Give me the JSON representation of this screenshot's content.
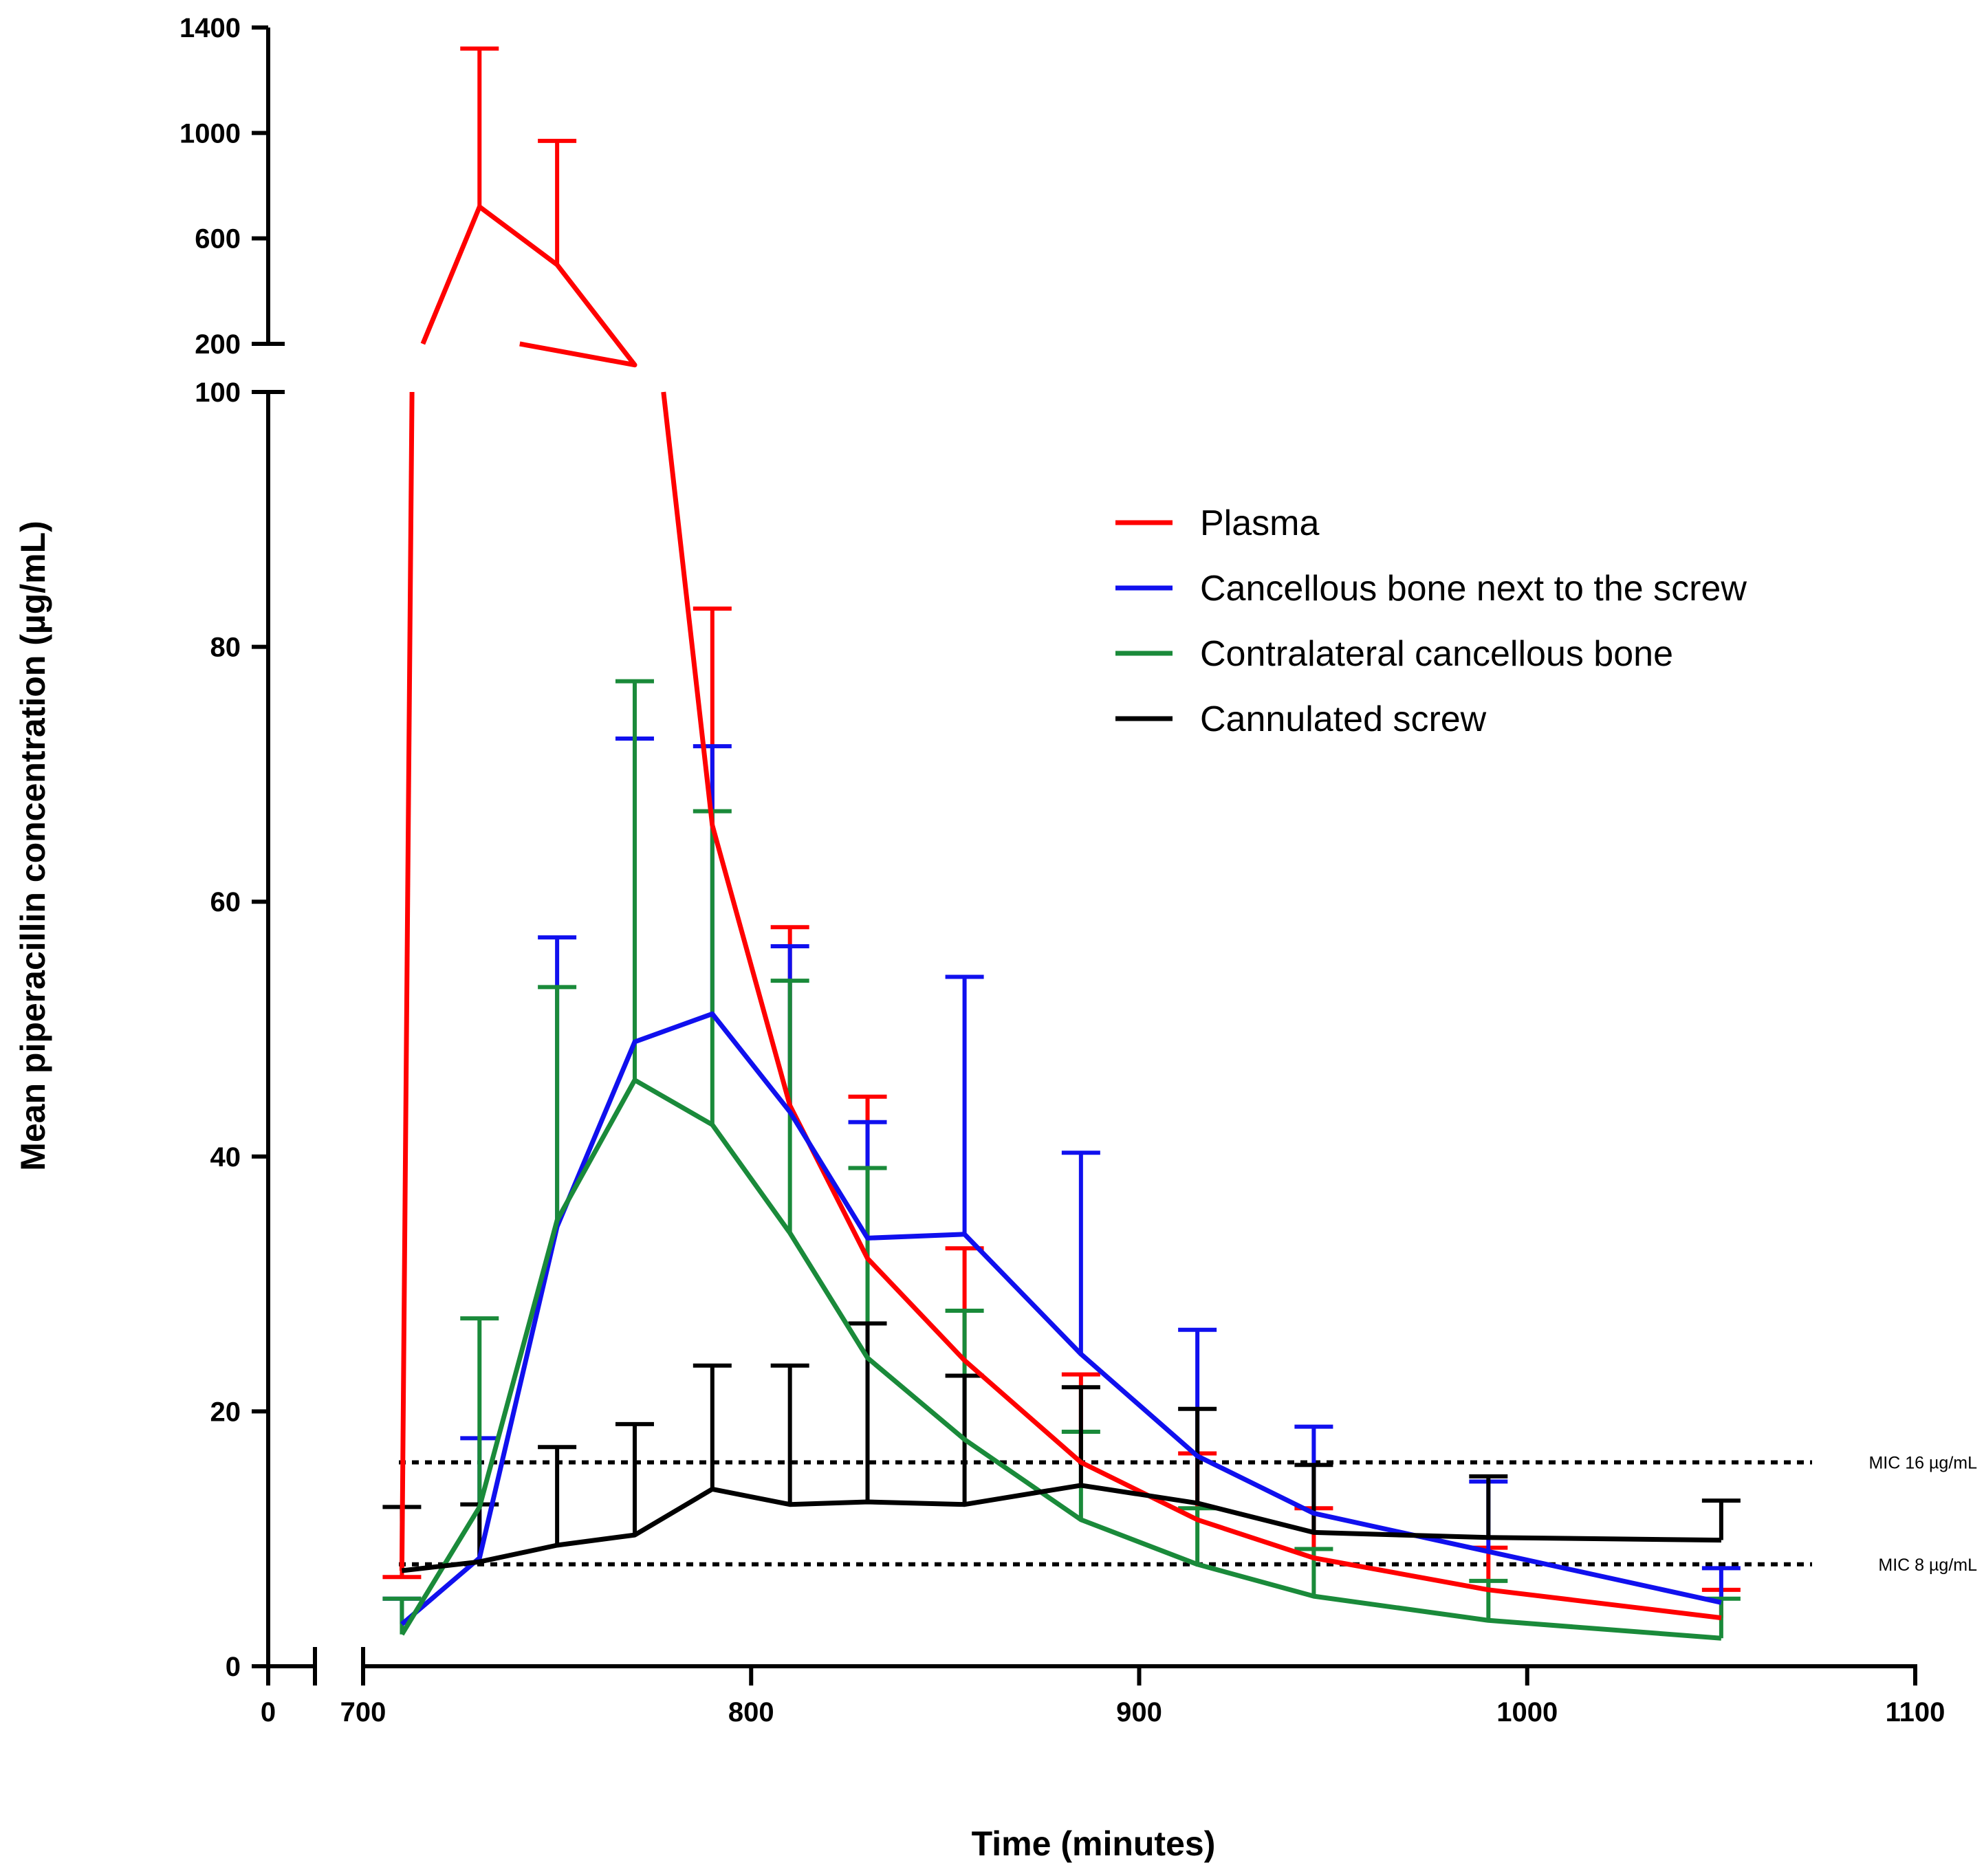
{
  "chart_data": {
    "type": "line",
    "title": "",
    "xlabel": "Time (minutes)",
    "ylabel": "Mean piperacillin concentration (µg/mL)",
    "x_axis": {
      "break_between": [
        0,
        700
      ],
      "segment_1": {
        "range": [
          0,
          60
        ],
        "ticks": [
          0
        ]
      },
      "segment_2": {
        "range": [
          700,
          1100
        ],
        "ticks": [
          700,
          800,
          900,
          1000,
          1100
        ]
      }
    },
    "y_axis": {
      "break_between": [
        100,
        200
      ],
      "lower": {
        "range": [
          0,
          100
        ],
        "ticks": [
          0,
          20,
          40,
          60,
          80,
          100
        ]
      },
      "upper": {
        "range": [
          200,
          1400
        ],
        "ticks": [
          200,
          600,
          1000,
          1400
        ]
      }
    },
    "legend_position": "upper-right",
    "error_bars": "upper standard deviation",
    "series": [
      {
        "name": "Plasma",
        "color": "#ff0000",
        "x": [
          710,
          730,
          750,
          770,
          790,
          810,
          830,
          855,
          885,
          915,
          945,
          990,
          1050
        ],
        "values": [
          7.5,
          720,
          500,
          120,
          66,
          44,
          32,
          24,
          16,
          11.5,
          8.5,
          6,
          3.8
        ],
        "error_upper": [
          7,
          1320,
          970,
          null,
          83,
          58,
          44.7,
          32.8,
          22.9,
          16.7,
          12.4,
          9.3,
          6
        ]
      },
      {
        "name": "Cancellous bone next to the screw",
        "color": "#1010ee",
        "x": [
          710,
          730,
          750,
          770,
          790,
          810,
          830,
          855,
          885,
          915,
          945,
          990,
          1050
        ],
        "values": [
          3.3,
          8.5,
          34.5,
          49,
          51.2,
          43.5,
          33.6,
          33.9,
          24.5,
          16.5,
          12,
          9,
          5
        ],
        "error_upper": [
          5.3,
          17.9,
          57.2,
          72.8,
          72.2,
          56.5,
          42.7,
          54.1,
          40.3,
          26.4,
          18.8,
          14.5,
          7.7
        ]
      },
      {
        "name": "Contralateral cancellous bone",
        "color": "#1a8a3a",
        "x": [
          710,
          730,
          750,
          770,
          790,
          810,
          830,
          855,
          885,
          915,
          945,
          990,
          1050
        ],
        "values": [
          2.5,
          12.5,
          35,
          46,
          42.5,
          34,
          24.2,
          17.8,
          11.5,
          8,
          5.5,
          3.6,
          2.2
        ],
        "error_upper": [
          5.3,
          27.3,
          53.3,
          77.3,
          67.1,
          53.8,
          39.1,
          27.9,
          18.4,
          12.4,
          9.2,
          6.7,
          5.3
        ]
      },
      {
        "name": "Cannulated screw",
        "color": "#000000",
        "x": [
          710,
          730,
          750,
          770,
          790,
          810,
          830,
          855,
          885,
          915,
          945,
          990,
          1050
        ],
        "values": [
          7.5,
          8.2,
          9.5,
          10.3,
          13.9,
          12.7,
          12.9,
          12.7,
          14.2,
          12.8,
          10.5,
          10.1,
          9.9
        ],
        "error_upper": [
          12.5,
          12.7,
          17.2,
          19,
          23.6,
          23.6,
          26.9,
          22.8,
          21.9,
          20.2,
          15.8,
          14.9,
          13
        ]
      }
    ],
    "reference_lines": [
      {
        "label": "MIC 16 µg/mL",
        "value": 16
      },
      {
        "label": "MIC 8 µg/mL",
        "value": 8
      }
    ]
  }
}
